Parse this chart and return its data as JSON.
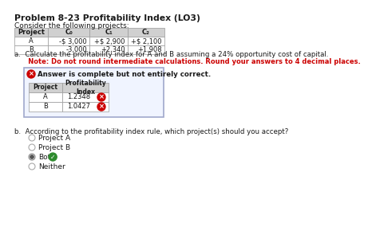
{
  "title": "Problem 8-23 Profitability Index (LO3)",
  "intro_text": "Consider the following projects:",
  "project_table_headers": [
    "Project",
    "C₀",
    "C₁",
    "C₂"
  ],
  "project_table_rows": [
    [
      "A",
      "-$ 3,000",
      "+$ 2,900",
      "+$ 2,100"
    ],
    [
      "B",
      "-3,000",
      "+2,340",
      "+1,908"
    ]
  ],
  "part_a_text1": "a.  Calculate the profitability index for A and B assuming a 24% opportunity cost of capital.",
  "part_a_note": "      Note: Do not round intermediate calculations. Round your answers to 4 decimal places.",
  "answer_box_text": "Answer is complete but not entirely correct.",
  "pi_table_headers": [
    "Project",
    "Profitability\nIndex"
  ],
  "pi_table_rows": [
    [
      "A",
      "1.2348"
    ],
    [
      "B",
      "1.0427"
    ]
  ],
  "part_b_text": "b.  According to the profitability index rule, which project(s) should you accept?",
  "radio_options": [
    "Project A",
    "Project B",
    "Both",
    "Neither"
  ],
  "radio_selected": 2,
  "bg_color": "#ffffff",
  "text_color": "#1a1a1a",
  "red_text_color": "#cc0000",
  "header_bg": "#d0d0d0",
  "answer_box_bg": "#f0f4ff",
  "answer_box_border": "#a0a8cc",
  "table_border": "#999999",
  "wrong_icon_color": "#cc0000",
  "correct_icon_color": "#2e8b2e",
  "radio_dot_color": "#444444"
}
